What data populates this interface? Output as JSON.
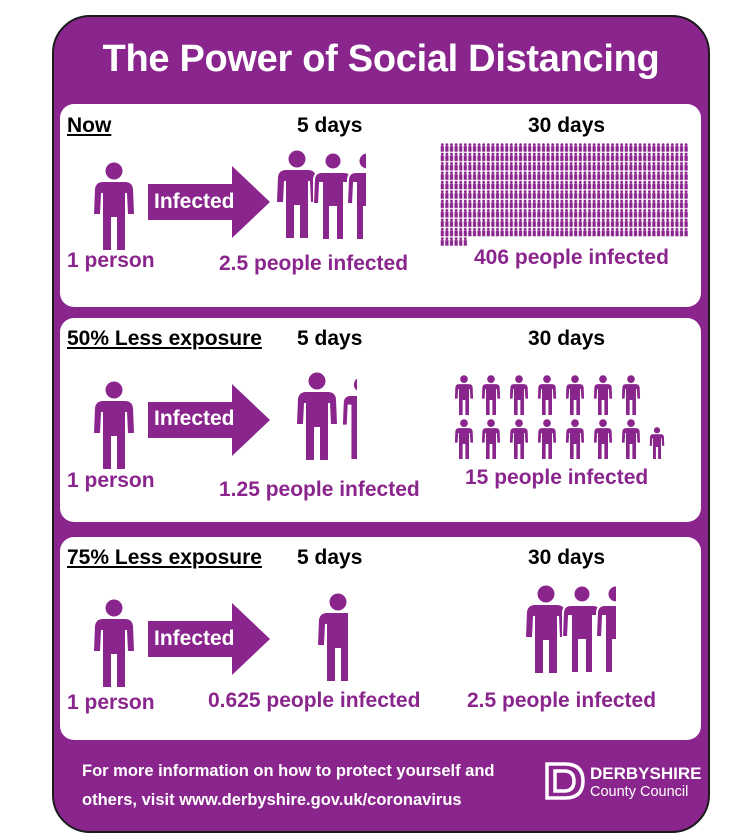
{
  "title": "The Power of Social Distancing",
  "colors": {
    "purple": "#8a258d",
    "white": "#ffffff"
  },
  "arrow_label": "Infected",
  "sections": [
    {
      "label": "Now",
      "day5_label": "5 days",
      "day30_label": "30 days",
      "start_caption": "1 person",
      "day5_caption": "2.5 people infected",
      "day30_caption": "406 people infected",
      "day5_count": 2.5,
      "day30_count": 406
    },
    {
      "label": "50% Less exposure",
      "day5_label": "5 days",
      "day30_label": "30 days",
      "start_caption": "1 person",
      "day5_caption": "1.25 people infected",
      "day30_caption": "15 people infected",
      "day5_count": 1.25,
      "day30_count": 15
    },
    {
      "label": "75% Less exposure",
      "day5_label": "5 days",
      "day30_label": "30 days",
      "start_caption": "1 person",
      "day5_caption": "0.625 people infected",
      "day30_caption": "2.5 people infected",
      "day5_count": 0.625,
      "day30_count": 2.5
    }
  ],
  "footer": {
    "line1": "For more information on how to protect yourself and",
    "line2": "others, visit www.derbyshire.gov.uk/coronavirus"
  },
  "logo": {
    "name": "DERBYSHIRE",
    "subtitle": "County Council",
    "icon": "derbyshire-d-logo-icon"
  }
}
